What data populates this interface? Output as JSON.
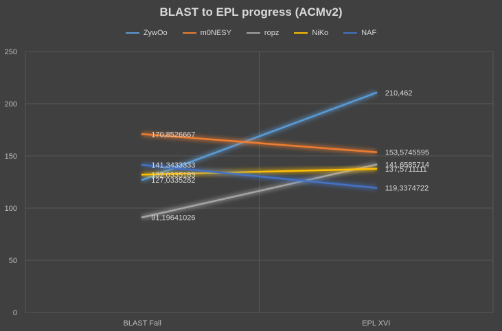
{
  "chart_data": {
    "type": "line",
    "title": "BLAST to EPL progress (ACMv2)",
    "categories": [
      "BLAST Fall",
      "EPL XVI"
    ],
    "ylim": [
      0,
      250
    ],
    "yticks": [
      0,
      50,
      100,
      150,
      200,
      250
    ],
    "grid": true,
    "legend_position": "top",
    "series": [
      {
        "name": "ZywOo",
        "color": "#5b9bd5",
        "values": [
          127.0335282,
          210.462
        ],
        "labels": [
          "127,0335282",
          "210,462"
        ]
      },
      {
        "name": "m0NESY",
        "color": "#ed7d31",
        "values": [
          170.8526667,
          153.5745595
        ],
        "labels": [
          "170,8526667",
          "153,5745595"
        ]
      },
      {
        "name": "ropz",
        "color": "#a5a5a5",
        "values": [
          91.19641026,
          141.6585714
        ],
        "labels": [
          "91,19641026",
          "141,6585714"
        ]
      },
      {
        "name": "NiKo",
        "color": "#ffc000",
        "values": [
          132.0335183,
          137.5711111
        ],
        "labels": [
          "132,0335183",
          "137,5711111"
        ]
      },
      {
        "name": "NAF",
        "color": "#4472c4",
        "values": [
          141.3433333,
          119.3374722
        ],
        "labels": [
          "141,3433333",
          "119,3374722"
        ]
      }
    ]
  }
}
